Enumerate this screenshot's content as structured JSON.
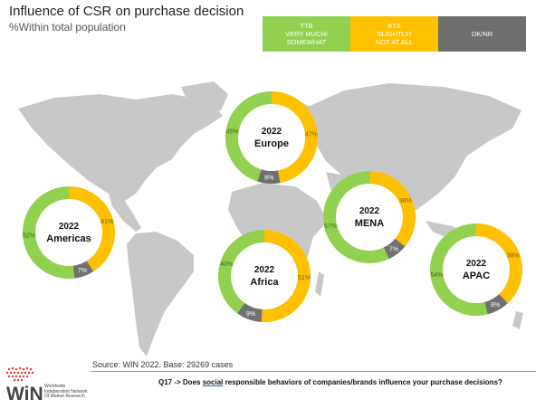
{
  "title": "Influence of CSR on purchase decision",
  "subtitle": "%Within total population",
  "legend": [
    {
      "label": "TTB\nVERY MUCH/\nSOMEWHAT",
      "color": "#92d050"
    },
    {
      "label": "BTB\nSLIGHTLY/\nNOT AT ALL",
      "color": "#ffc000"
    },
    {
      "label": "DK/NR",
      "color": "#6f6f6f"
    }
  ],
  "colors": {
    "ttb": "#92d050",
    "btb": "#ffc000",
    "dk": "#707070",
    "map": "#c8c8c8"
  },
  "chart_data": {
    "type": "pie",
    "title": "Influence of CSR on purchase decision",
    "subtitle": "%Within total population",
    "series_names": [
      "TTB VERY MUCH/SOMEWHAT",
      "BTB SLIGHTLY/NOT AT ALL",
      "DK/NR"
    ],
    "regions": [
      {
        "year": "2022",
        "name": "Europe",
        "ttb": 45,
        "btb": 47,
        "dk": 8,
        "labels": [
          "45%",
          "47%",
          "8%"
        ]
      },
      {
        "year": "2022",
        "name": "Americas",
        "ttb": 52,
        "btb": 41,
        "dk": 7,
        "labels": [
          "52%",
          "41%",
          "7%"
        ]
      },
      {
        "year": "2022",
        "name": "MENA",
        "ttb": 57,
        "btb": 36,
        "dk": 7,
        "labels": [
          "57%",
          "36%",
          "7%"
        ]
      },
      {
        "year": "2022",
        "name": "Africa",
        "ttb": 40,
        "btb": 51,
        "dk": 9,
        "labels": [
          "40%",
          "51%",
          "9%"
        ]
      },
      {
        "year": "2022",
        "name": "APAC",
        "ttb": 54,
        "btb": 38,
        "dk": 8,
        "labels": [
          "54%",
          "38%",
          "8%"
        ]
      }
    ]
  },
  "source": "Source: WIN 2022. Base: 29269 cases",
  "question": {
    "pre": "Q17 -> Does ",
    "underlined": "social",
    "post": " responsible behaviors of companies/brands influence your purchase decisions?"
  },
  "logo": {
    "text": "WiN",
    "sub": "Worldwide\nIndependent Network\nOf Market Research"
  }
}
